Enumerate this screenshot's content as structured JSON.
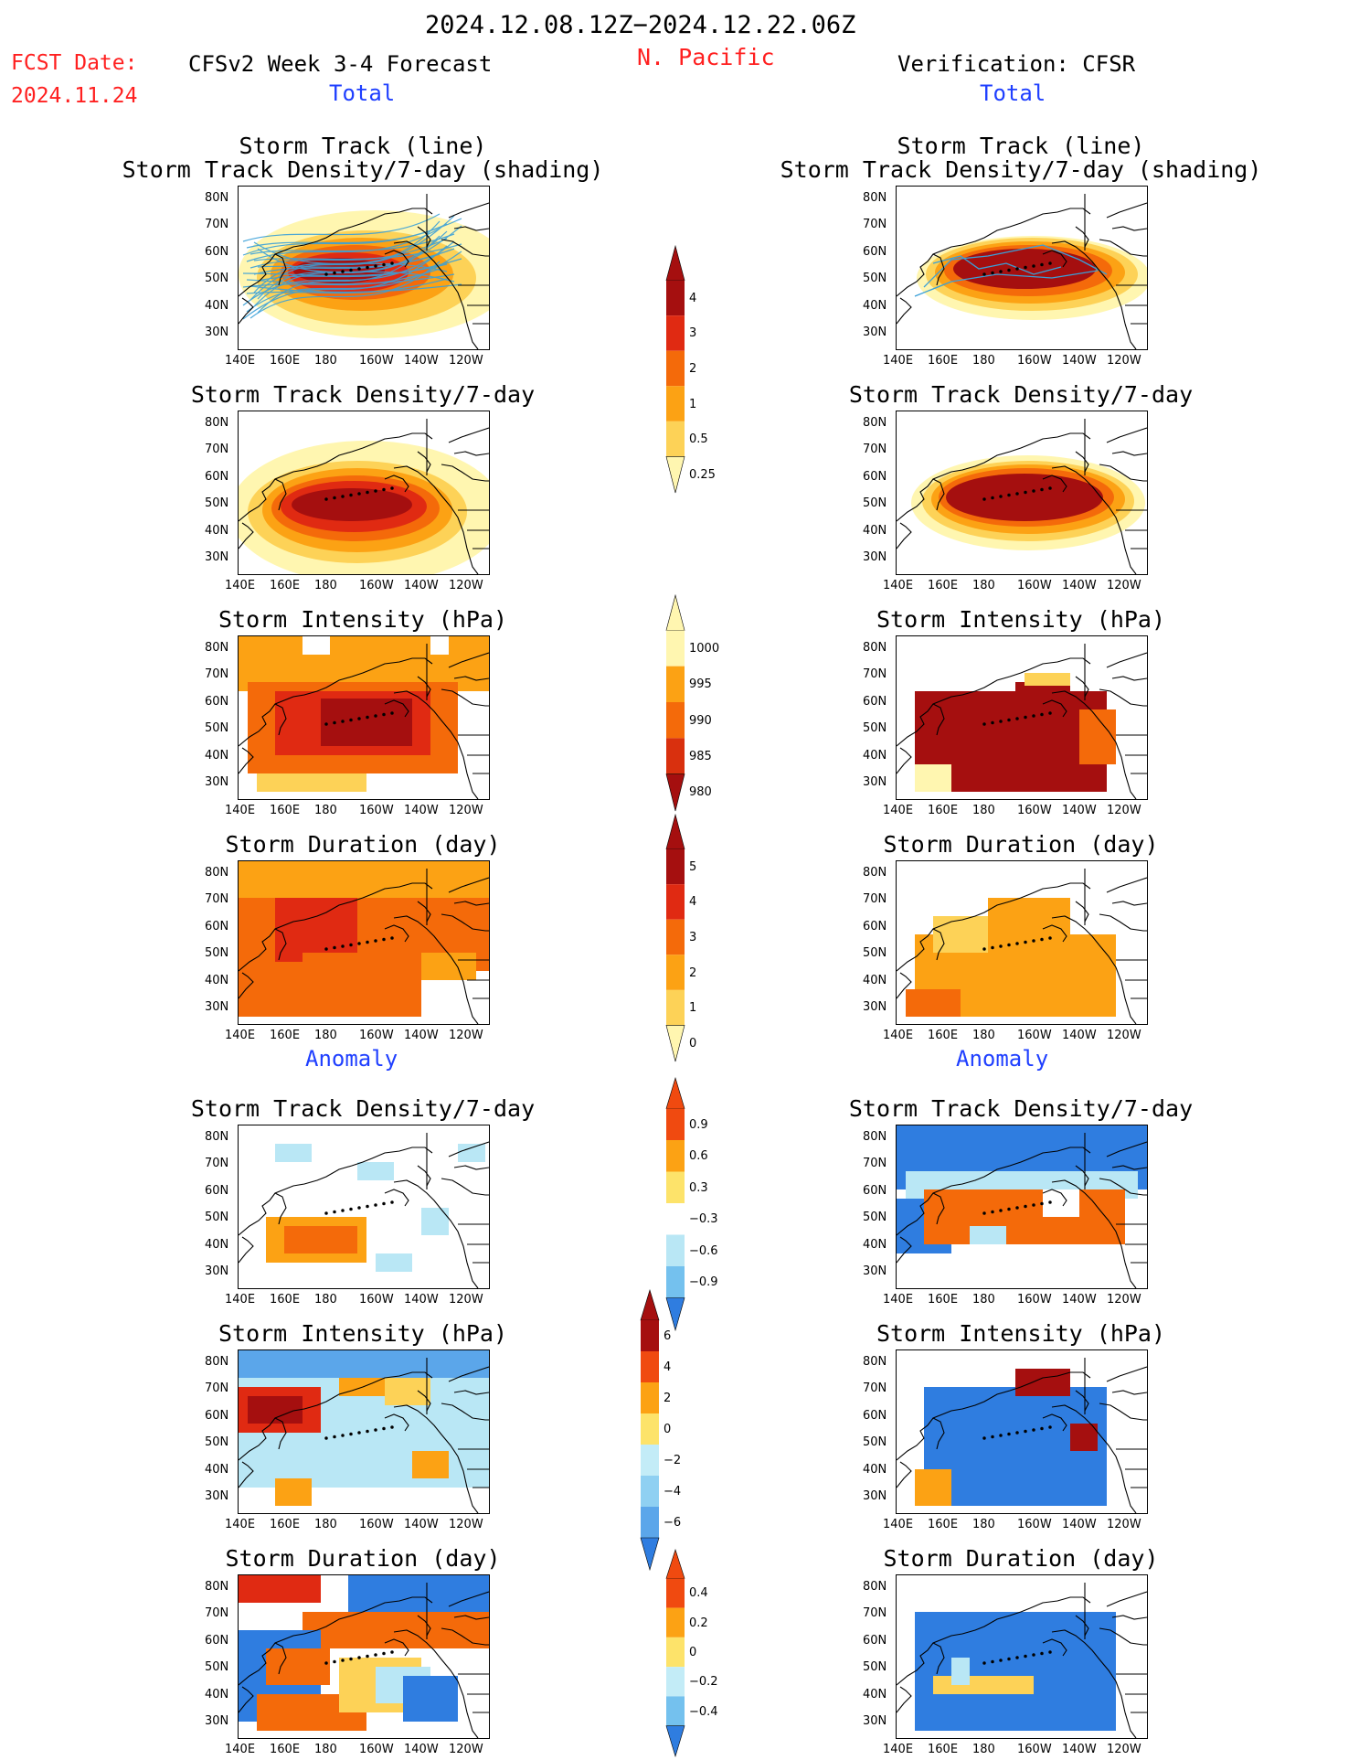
{
  "header": {
    "period": "2024.12.08.12Z−2024.12.22.06Z",
    "fcst_label": "FCST Date:",
    "fcst_date": "2024.11.24",
    "model_title": "CFSv2 Week 3-4 Forecast",
    "region": "N. Pacific",
    "verification": "Verification: CFSR"
  },
  "sections": {
    "total_label": "Total",
    "anomaly_label": "Anomaly"
  },
  "panel_titles": {
    "track_line": "Storm Track (line)",
    "track_shading": "Storm Track Density/7-day (shading)",
    "density": "Storm Track Density/7-day",
    "intensity": "Storm Intensity (hPa)",
    "duration": "Storm Duration (day)"
  },
  "axes": {
    "lon_ticks": [
      "140E",
      "160E",
      "180",
      "160W",
      "140W",
      "120W"
    ],
    "lat_ticks": [
      "80N",
      "70N",
      "60N",
      "50N",
      "40N",
      "30N"
    ]
  },
  "colorbars": {
    "density_total": {
      "labels": [
        "4",
        "3",
        "2",
        "1",
        "0.5",
        "0.25"
      ],
      "colors": [
        "#a50f0f",
        "#e02a12",
        "#f46a0a",
        "#fca214",
        "#fdd257",
        "#fff6b0"
      ]
    },
    "intensity_total": {
      "labels": [
        "1000",
        "995",
        "990",
        "985",
        "980"
      ],
      "colors": [
        "#fff6b0",
        "#fca214",
        "#f46a0a",
        "#d9300e",
        "#a50f0f"
      ]
    },
    "duration_total": {
      "labels": [
        "5",
        "4",
        "3",
        "2",
        "1",
        "0"
      ],
      "colors": [
        "#a50f0f",
        "#e02a12",
        "#f46a0a",
        "#fca214",
        "#fdd257",
        "#fff6b0"
      ]
    },
    "density_anom": {
      "labels": [
        "0.9",
        "0.6",
        "0.3",
        "−0.3",
        "−0.6",
        "−0.9"
      ],
      "colors": [
        "#f04a10",
        "#fca214",
        "#fde36a",
        "#ffffff",
        "#b9e7f5",
        "#74c1ee",
        "#2f7de0"
      ]
    },
    "intensity_anom": {
      "labels": [
        "6",
        "4",
        "2",
        "0",
        "−2",
        "−4",
        "−6"
      ],
      "colors": [
        "#a50f0f",
        "#f04a10",
        "#fca214",
        "#fde36a",
        "#c3ecf7",
        "#8fd0f2",
        "#5ba6ea",
        "#2f7de0"
      ]
    },
    "duration_anom": {
      "labels": [
        "0.4",
        "0.2",
        "0",
        "−0.2",
        "−0.4"
      ],
      "colors": [
        "#f04a10",
        "#fca214",
        "#fde36a",
        "#c3ecf7",
        "#74c1ee",
        "#2f7de0"
      ]
    }
  },
  "palette": {
    "dark_red": "#a50f0f",
    "red": "#e02a12",
    "orange_red": "#f46a0a",
    "orange": "#fca214",
    "light_orange": "#fdd257",
    "pale_yellow": "#fff6b0",
    "light_blue": "#b9e7f5",
    "mid_blue": "#5ba6ea",
    "dark_blue": "#2f7de0",
    "track_line": "#3aa0d8",
    "coast": "#000000"
  }
}
